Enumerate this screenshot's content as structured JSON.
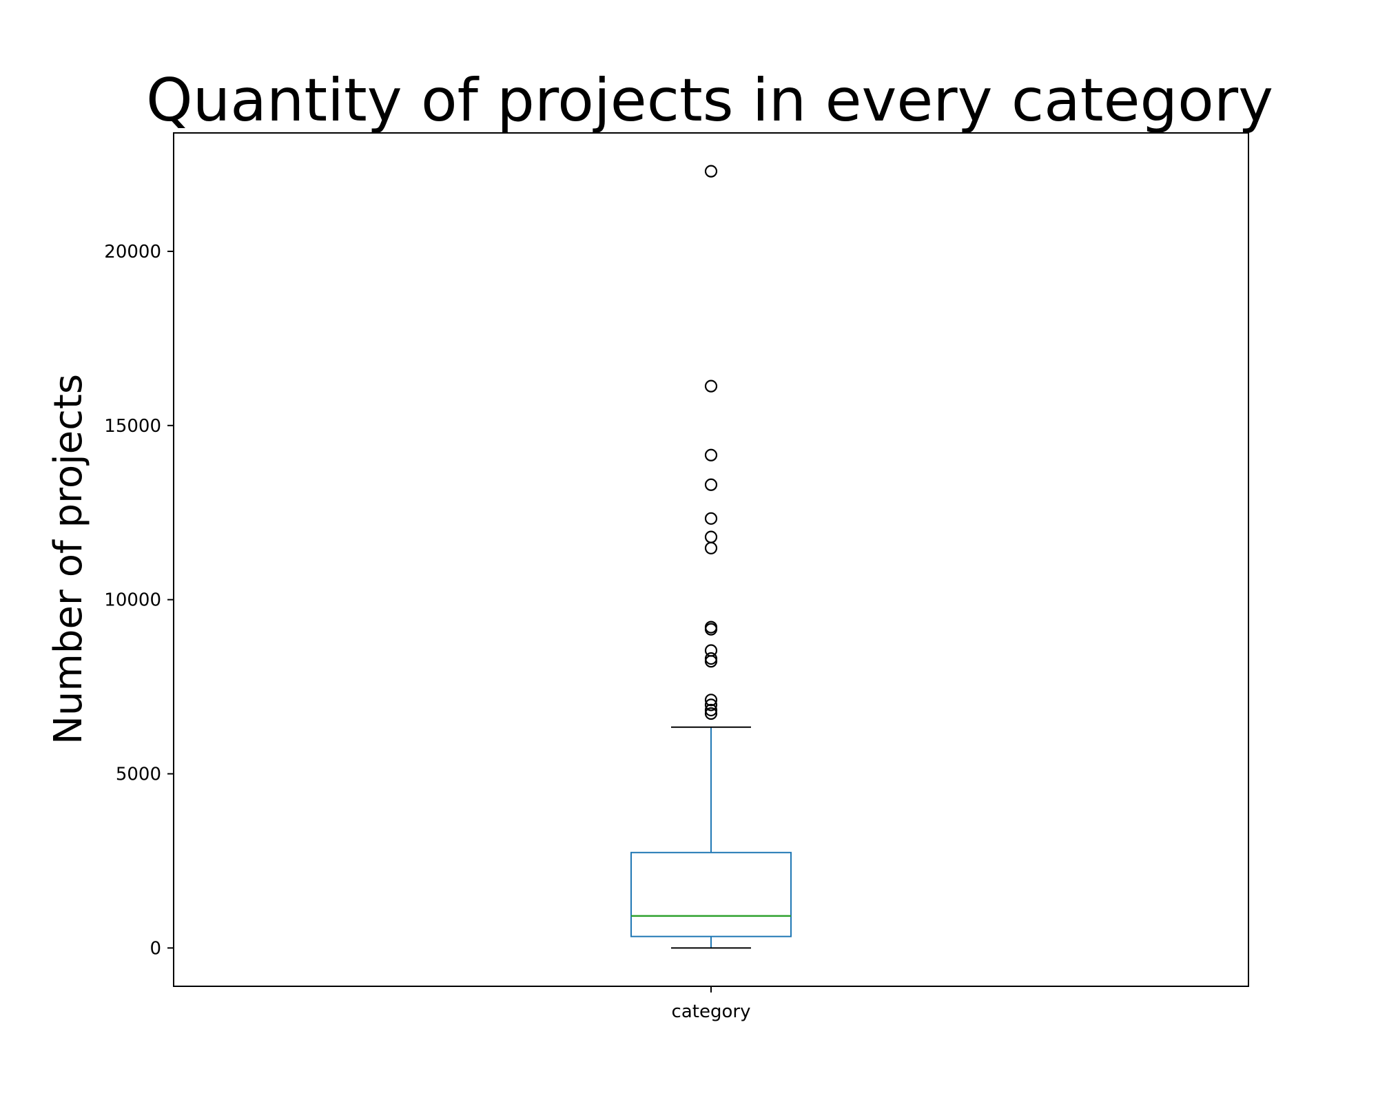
{
  "chart_data": {
    "type": "box",
    "title": "Quantity of projects in every category",
    "xlabel": "",
    "ylabel": "Number of projects",
    "categories": [
      "category"
    ],
    "ylim": [
      -1100,
      23400
    ],
    "yticks": [
      0,
      5000,
      10000,
      15000,
      20000
    ],
    "ytick_labels": [
      "0",
      "5000",
      "10000",
      "15000",
      "20000"
    ],
    "grid": false,
    "box": {
      "whisker_low": 0,
      "q1": 330,
      "median": 920,
      "q3": 2740,
      "whisker_high": 6340,
      "outliers": [
        22300,
        16130,
        14150,
        13300,
        12330,
        11800,
        11480,
        9210,
        9150,
        8540,
        8310,
        8230,
        7120,
        6980,
        6830,
        6730
      ]
    },
    "colors": {
      "box": "#1f77b4",
      "median": "#2ca02c",
      "caps": "#000000",
      "outliers": "#000000"
    }
  }
}
